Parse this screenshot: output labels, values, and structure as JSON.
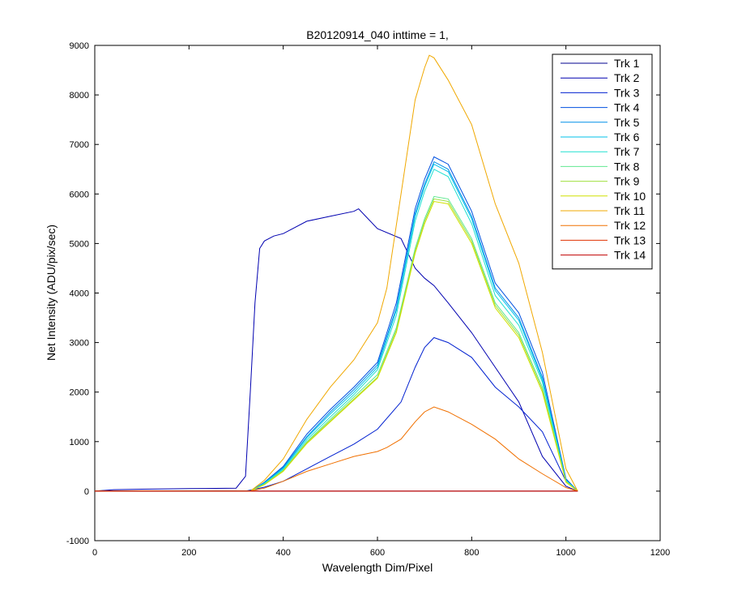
{
  "chart_data": {
    "type": "line",
    "title": "B20120914_040 inttime = 1,",
    "xlabel": "Wavelength Dim/Pixel",
    "ylabel": "Net Intensity (ADU/pix/sec)",
    "xlim": [
      0,
      1200
    ],
    "ylim": [
      -1000,
      9000
    ],
    "xticks": [
      0,
      200,
      400,
      600,
      800,
      1000,
      1200
    ],
    "yticks": [
      -1000,
      0,
      1000,
      2000,
      3000,
      4000,
      5000,
      6000,
      7000,
      8000,
      9000
    ],
    "grid": false,
    "legend_position": "top-right",
    "series": [
      {
        "name": "Trk 1",
        "color": "#00008F",
        "x": [
          0,
          300,
          320,
          360,
          1025
        ],
        "y": [
          0,
          0,
          0,
          0,
          0
        ]
      },
      {
        "name": "Trk 2",
        "color": "#0000B0",
        "x": [
          0,
          40,
          100,
          200,
          300,
          320,
          330,
          340,
          350,
          360,
          380,
          400,
          450,
          500,
          550,
          560,
          600,
          650,
          680,
          700,
          720,
          750,
          800,
          850,
          900,
          950,
          1000,
          1025
        ],
        "y": [
          0,
          30,
          40,
          50,
          60,
          300,
          2000,
          3800,
          4900,
          5050,
          5150,
          5200,
          5450,
          5550,
          5650,
          5700,
          5300,
          5100,
          4500,
          4300,
          4150,
          3800,
          3200,
          2500,
          1800,
          700,
          100,
          0
        ]
      },
      {
        "name": "Trk 3",
        "color": "#0020D0",
        "x": [
          0,
          320,
          360,
          400,
          450,
          500,
          550,
          600,
          650,
          680,
          700,
          720,
          750,
          800,
          850,
          900,
          950,
          1000,
          1025
        ],
        "y": [
          0,
          0,
          80,
          200,
          450,
          700,
          950,
          1250,
          1800,
          2500,
          2900,
          3100,
          3000,
          2700,
          2100,
          1700,
          1200,
          200,
          0
        ]
      },
      {
        "name": "Trk 4",
        "color": "#0050E0",
        "x": [
          0,
          330,
          360,
          400,
          450,
          500,
          550,
          600,
          640,
          680,
          700,
          720,
          750,
          800,
          850,
          900,
          950,
          1000,
          1025
        ],
        "y": [
          0,
          0,
          180,
          500,
          1150,
          1650,
          2100,
          2600,
          3800,
          5700,
          6300,
          6750,
          6600,
          5650,
          4200,
          3600,
          2400,
          250,
          0
        ]
      },
      {
        "name": "Trk 5",
        "color": "#0090E8",
        "x": [
          0,
          330,
          360,
          400,
          450,
          500,
          550,
          600,
          640,
          680,
          700,
          720,
          750,
          800,
          850,
          900,
          950,
          1000,
          1025
        ],
        "y": [
          0,
          0,
          170,
          480,
          1100,
          1600,
          2050,
          2550,
          3700,
          5600,
          6200,
          6650,
          6500,
          5550,
          4100,
          3500,
          2300,
          230,
          0
        ]
      },
      {
        "name": "Trk 6",
        "color": "#00C0E8",
        "x": [
          0,
          330,
          360,
          400,
          450,
          500,
          550,
          600,
          640,
          680,
          700,
          720,
          750,
          800,
          850,
          900,
          950,
          1000,
          1025
        ],
        "y": [
          0,
          0,
          160,
          460,
          1080,
          1560,
          2000,
          2500,
          3650,
          5550,
          6150,
          6600,
          6450,
          5500,
          4050,
          3450,
          2250,
          220,
          0
        ]
      },
      {
        "name": "Trk 7",
        "color": "#20E0D0",
        "x": [
          0,
          330,
          360,
          400,
          450,
          500,
          550,
          600,
          640,
          680,
          700,
          720,
          750,
          800,
          850,
          900,
          950,
          1000,
          1025
        ],
        "y": [
          0,
          0,
          150,
          440,
          1040,
          1500,
          1950,
          2450,
          3550,
          5450,
          6050,
          6500,
          6350,
          5400,
          3950,
          3350,
          2200,
          210,
          0
        ]
      },
      {
        "name": "Trk 8",
        "color": "#60E890",
        "x": [
          0,
          330,
          360,
          400,
          450,
          500,
          550,
          600,
          640,
          680,
          700,
          720,
          750,
          800,
          850,
          900,
          950,
          1000,
          1025
        ],
        "y": [
          0,
          0,
          140,
          420,
          1000,
          1450,
          1900,
          2350,
          3300,
          4900,
          5500,
          5950,
          5900,
          5100,
          3800,
          3200,
          2100,
          200,
          0
        ]
      },
      {
        "name": "Trk 9",
        "color": "#A0E040",
        "x": [
          0,
          330,
          360,
          400,
          450,
          500,
          550,
          600,
          640,
          680,
          700,
          720,
          750,
          800,
          850,
          900,
          950,
          1000,
          1025
        ],
        "y": [
          0,
          0,
          135,
          410,
          980,
          1420,
          1860,
          2300,
          3250,
          4850,
          5450,
          5900,
          5850,
          5050,
          3750,
          3150,
          2050,
          190,
          0
        ]
      },
      {
        "name": "Trk 10",
        "color": "#D0E000",
        "x": [
          0,
          330,
          360,
          400,
          450,
          500,
          550,
          600,
          640,
          680,
          700,
          720,
          750,
          800,
          850,
          900,
          950,
          1000,
          1025
        ],
        "y": [
          0,
          0,
          130,
          400,
          960,
          1400,
          1840,
          2280,
          3200,
          4800,
          5400,
          5850,
          5800,
          5000,
          3700,
          3100,
          2000,
          180,
          0
        ]
      },
      {
        "name": "Trk 11",
        "color": "#F0A800",
        "x": [
          0,
          330,
          360,
          400,
          450,
          500,
          550,
          600,
          620,
          650,
          680,
          700,
          710,
          720,
          750,
          800,
          850,
          900,
          950,
          1000,
          1025
        ],
        "y": [
          0,
          0,
          220,
          650,
          1450,
          2100,
          2650,
          3400,
          4100,
          6000,
          7900,
          8550,
          8800,
          8750,
          8300,
          7400,
          5800,
          4600,
          2800,
          450,
          0
        ]
      },
      {
        "name": "Trk 12",
        "color": "#F07000",
        "x": [
          0,
          330,
          360,
          400,
          450,
          500,
          550,
          600,
          620,
          650,
          680,
          700,
          720,
          750,
          800,
          850,
          900,
          950,
          1000,
          1025
        ],
        "y": [
          0,
          0,
          60,
          200,
          400,
          550,
          700,
          800,
          880,
          1050,
          1400,
          1600,
          1700,
          1600,
          1350,
          1050,
          650,
          350,
          70,
          0
        ]
      },
      {
        "name": "Trk 13",
        "color": "#E03000",
        "x": [
          0,
          500,
          1025
        ],
        "y": [
          0,
          0,
          0
        ]
      },
      {
        "name": "Trk 14",
        "color": "#C00000",
        "x": [
          0,
          500,
          1025
        ],
        "y": [
          0,
          0,
          0
        ]
      }
    ]
  }
}
